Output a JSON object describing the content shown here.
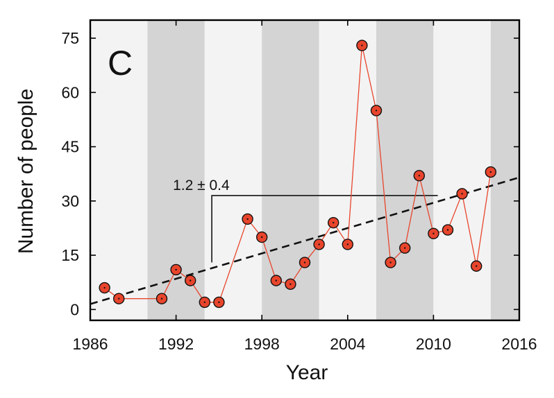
{
  "chart_data": {
    "type": "scatter",
    "panel_label": "C",
    "xlabel": "Year",
    "ylabel": "Number of people",
    "xlim": [
      1986,
      2016
    ],
    "ylim": [
      -3,
      80
    ],
    "x_ticks": [
      1986,
      1992,
      1998,
      2004,
      2010,
      2016
    ],
    "y_ticks": [
      0,
      15,
      30,
      45,
      60,
      75
    ],
    "series": [
      {
        "x": [
          1987,
          1988,
          1991,
          1992,
          1993,
          1994,
          1995,
          1997,
          1998,
          1999,
          2000,
          2001,
          2002,
          2003,
          2004,
          2005,
          2006,
          2007,
          2008,
          2009,
          2010,
          2011,
          2012,
          2013,
          2014
        ],
        "y": [
          6,
          3,
          3,
          11,
          8,
          2,
          2,
          25,
          20,
          8,
          7,
          13,
          18,
          24,
          18,
          73,
          55,
          13,
          17,
          37,
          21,
          22,
          32,
          12,
          38
        ],
        "color": "#e8452c"
      }
    ],
    "trend_line": {
      "x": [
        1986,
        2016
      ],
      "y": [
        1.5,
        36.5
      ],
      "style": "dashed",
      "color": "#111111"
    },
    "background_bands": [
      {
        "from": 1986,
        "to": 1990,
        "color": "#f3f3f3"
      },
      {
        "from": 1990,
        "to": 1994,
        "color": "#d4d4d4"
      },
      {
        "from": 1994,
        "to": 1998,
        "color": "#f3f3f3"
      },
      {
        "from": 1998,
        "to": 2002,
        "color": "#d4d4d4"
      },
      {
        "from": 2002,
        "to": 2006,
        "color": "#f3f3f3"
      },
      {
        "from": 2006,
        "to": 2010,
        "color": "#d4d4d4"
      },
      {
        "from": 2010,
        "to": 2014,
        "color": "#f3f3f3"
      },
      {
        "from": 2014,
        "to": 2016,
        "color": "#d4d4d4"
      }
    ],
    "annotation": {
      "text": "1.2 ± 0.4",
      "bracket_x": [
        1994.5,
        2010.3
      ],
      "bracket_y": 31.5,
      "bracket_drop_to": 13
    },
    "grid": false,
    "legend": "none"
  }
}
